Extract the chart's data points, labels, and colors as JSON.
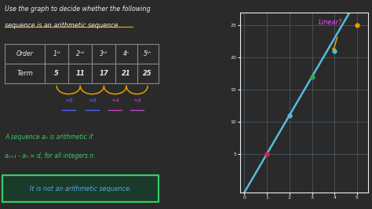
{
  "background_color": "#2a2a2a",
  "left_bg": "#1e1e1e",
  "graph": {
    "x_data": [
      1,
      2,
      3,
      4,
      5
    ],
    "y_data": [
      5,
      11,
      17,
      21,
      25
    ],
    "line_color": "#55bbdd",
    "point_colors": [
      "#dd2244",
      "#55bbdd",
      "#33aa55",
      "#55bbdd",
      "#e8a000"
    ],
    "xlim": [
      -0.2,
      5.5
    ],
    "ylim": [
      -1,
      27
    ],
    "xticks": [
      0,
      1,
      2,
      3,
      4,
      5
    ],
    "yticks": [
      5,
      10,
      15,
      20,
      25
    ],
    "grid_color": "#4a6070",
    "linear_label": "Linear?",
    "linear_color": "#ff44ff",
    "arrow_color": "#e8a000",
    "slope": 6,
    "intercept": -1
  },
  "title_line1": "Use the graph to decide whether the following",
  "title_line2": "sequence is an arithmetic sequence.",
  "underline_color": "#e8a000",
  "table_headers": [
    "Order",
    "1ˢᵗ",
    "2ⁿᵈ",
    "3ʳᵈ",
    "4ⁿ",
    "5ᵗʰ"
  ],
  "table_terms": [
    "Term",
    "5",
    "11",
    "17",
    "21",
    "25"
  ],
  "diffs": [
    "+6",
    "+6",
    "+4",
    "+4"
  ],
  "diff_colors_hex": [
    "#5566ff",
    "#5566ff",
    "#cc44cc",
    "#cc44cc"
  ],
  "arc_color": "#e8a000",
  "definition_line1": "A sequence aₙ is arithmetic if",
  "definition_line2": "aₙ₊₁ - aₙ = d, for all integers n.",
  "conclusion": "It is not an arithmetic sequence.",
  "green_color": "#33cc66",
  "box_color": "#33cc66",
  "box_fill": "#1a3a2a",
  "conclusion_color": "#55aadd",
  "text_color": "#eeeeee",
  "table_line_color": "#888888"
}
